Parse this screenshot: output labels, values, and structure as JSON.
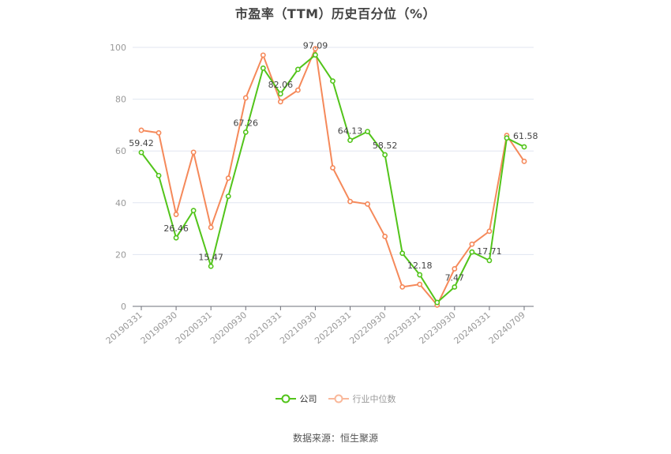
{
  "title": "市盈率（TTM）历史百分位（%）",
  "legend": [
    {
      "label": "公司",
      "color": "#52c41a"
    },
    {
      "label": "行业中位数",
      "color": "#f5895a"
    }
  ],
  "source": "数据来源：恒生聚源",
  "chart_data": {
    "type": "line",
    "title": "市盈率（TTM）历史百分位（%）",
    "xlabel": "",
    "ylabel": "",
    "ylim": [
      0,
      100
    ],
    "yticks": [
      0,
      20,
      40,
      60,
      80,
      100
    ],
    "grid": true,
    "legend_position": "bottom",
    "x": [
      "20190331",
      "20190630",
      "20190930",
      "20191231",
      "20200331",
      "20200630",
      "20200930",
      "20201231",
      "20210331",
      "20210630",
      "20210930",
      "20211231",
      "20220331",
      "20220630",
      "20220930",
      "20221231",
      "20230331",
      "20230630",
      "20230930",
      "20231231",
      "20240331",
      "20240630",
      "20240709"
    ],
    "xtick_labels": [
      "20190331",
      "20190930",
      "20200331",
      "20200930",
      "20210331",
      "20210930",
      "20220331",
      "20220930",
      "20230331",
      "20230930",
      "20240331",
      "20240709"
    ],
    "series": [
      {
        "name": "公司",
        "color": "#52c41a",
        "values": [
          59.42,
          50.5,
          26.46,
          37.0,
          15.47,
          42.5,
          67.26,
          92.0,
          82.06,
          91.5,
          97.09,
          87.0,
          64.13,
          67.5,
          58.52,
          20.5,
          12.18,
          1.5,
          7.47,
          21.0,
          17.71,
          65.0,
          61.58
        ],
        "labeled_points": [
          0,
          2,
          4,
          6,
          8,
          10,
          12,
          14,
          16,
          18,
          20,
          22
        ]
      },
      {
        "name": "行业中位数",
        "color": "#f5895a",
        "values": [
          68.0,
          67.0,
          35.5,
          59.5,
          30.5,
          49.5,
          80.5,
          97.0,
          79.0,
          83.5,
          99.5,
          53.5,
          40.5,
          39.5,
          27.0,
          7.5,
          8.5,
          0.5,
          14.5,
          24.0,
          29.0,
          66.0,
          56.0
        ]
      }
    ]
  }
}
